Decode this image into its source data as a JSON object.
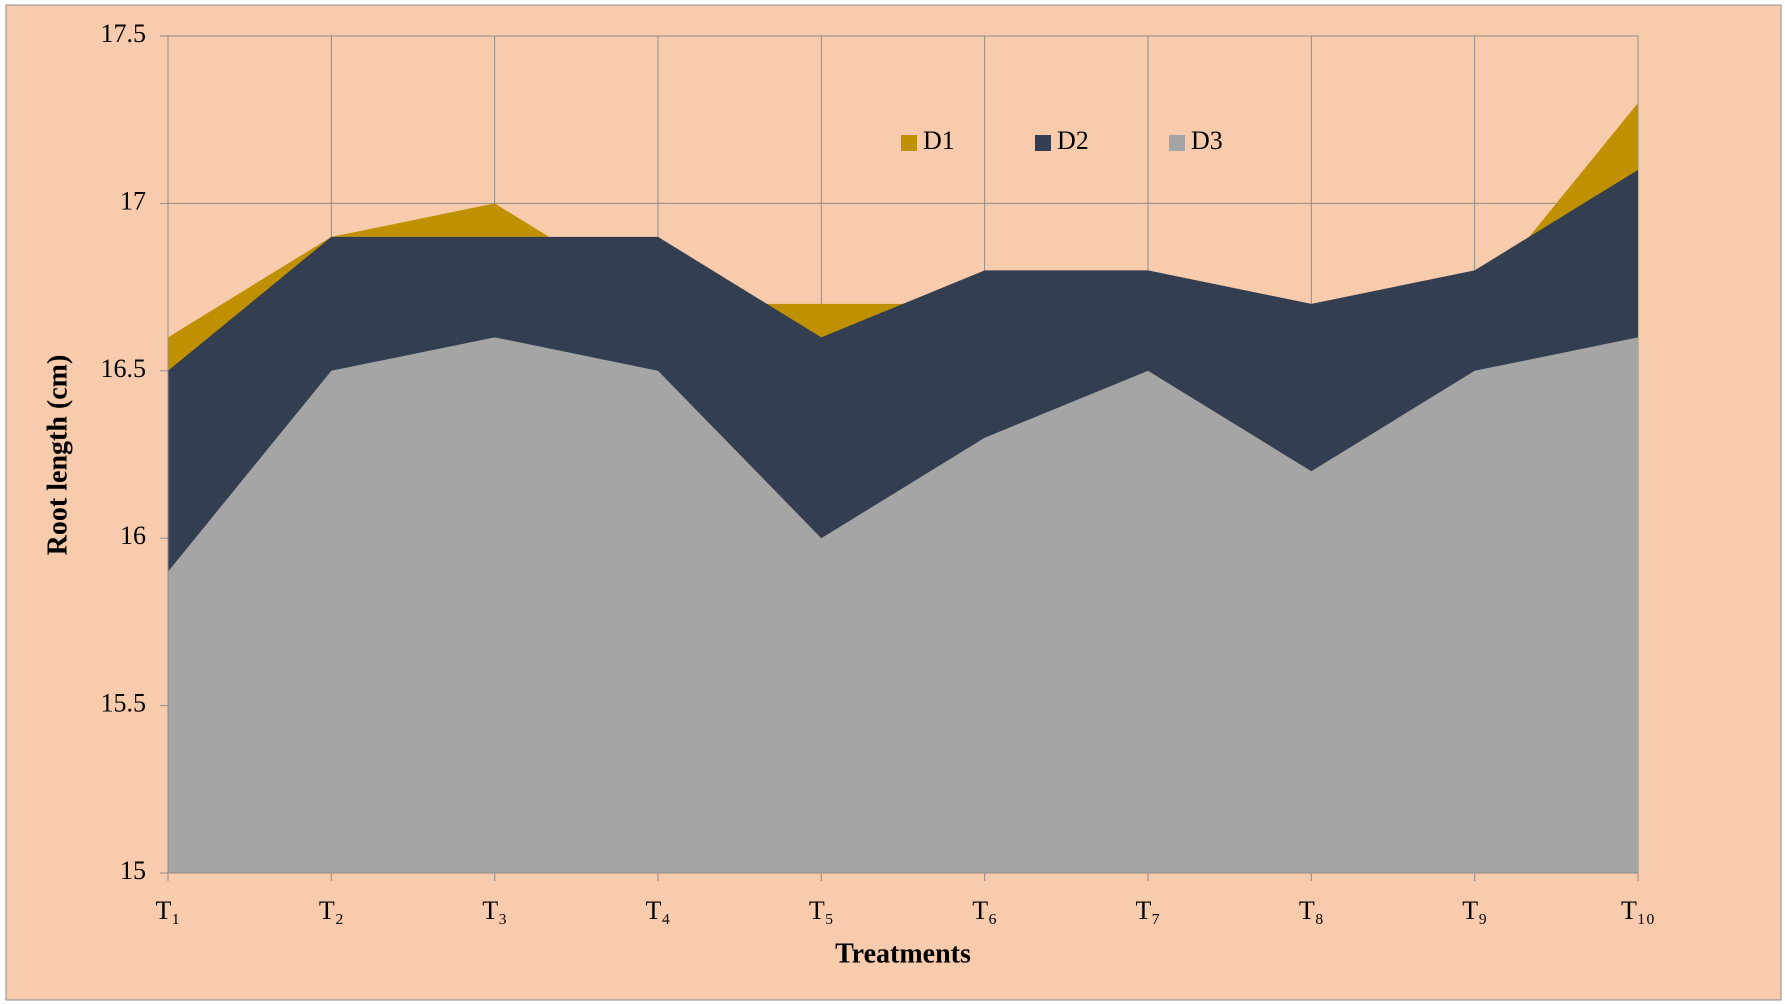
{
  "chart_data": {
    "type": "area",
    "x_label": "Treatments",
    "y_label": "Root length (cm)",
    "categories": [
      "T₁",
      "T₂",
      "T₃",
      "T₄",
      "T₅",
      "T₆",
      "T₇",
      "T₈",
      "T₉",
      "T₁₀"
    ],
    "series": [
      {
        "name": "D1",
        "color": "#bf9000",
        "values": [
          16.6,
          16.9,
          17.0,
          16.7,
          16.7,
          16.7,
          16.7,
          16.6,
          16.7,
          17.3
        ]
      },
      {
        "name": "D2",
        "color": "#333f50",
        "values": [
          16.5,
          16.9,
          16.9,
          16.9,
          16.6,
          16.8,
          16.8,
          16.7,
          16.8,
          17.1
        ]
      },
      {
        "name": "D3",
        "color": "#a5a5a5",
        "values": [
          15.9,
          16.5,
          16.6,
          16.5,
          16.0,
          16.3,
          16.5,
          16.2,
          16.5,
          16.6
        ]
      }
    ],
    "ylim": [
      15,
      17.5
    ],
    "yticks": [
      15,
      15.5,
      16,
      16.5,
      17,
      17.5
    ],
    "grid": true,
    "legend": "top"
  }
}
